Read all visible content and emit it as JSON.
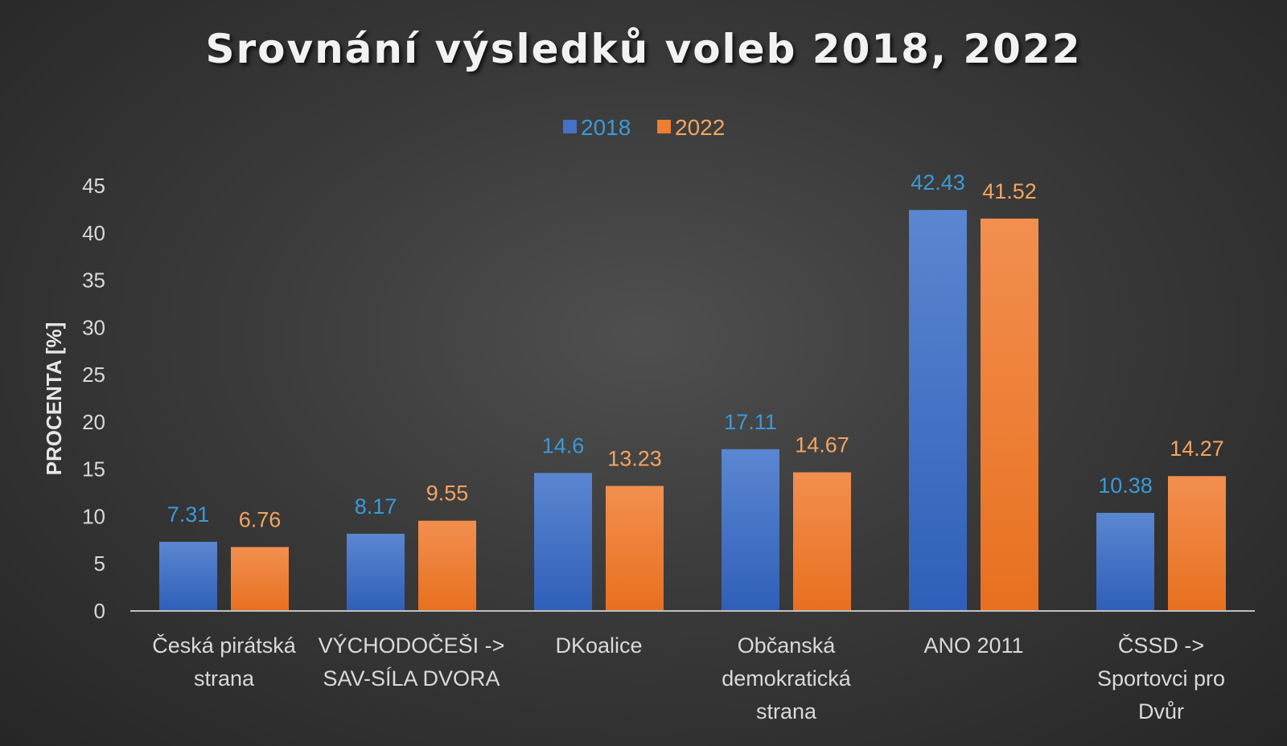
{
  "chart_data": {
    "type": "bar",
    "title": "Srovnání výsledků voleb 2018, 2022",
    "xlabel": "",
    "ylabel": "PROCENTA [%]",
    "ylim": [
      0,
      45
    ],
    "yticks": [
      0,
      5,
      10,
      15,
      20,
      25,
      30,
      35,
      40,
      45
    ],
    "grid": false,
    "legend_position": "top",
    "categories": [
      [
        "Česká pirátská",
        "strana"
      ],
      [
        "VÝCHODOČEŠI ->",
        "SAV-SÍLA DVORA"
      ],
      [
        "DKoalice"
      ],
      [
        "Občanská",
        "demokratická",
        "strana"
      ],
      [
        "ANO 2011"
      ],
      [
        "ČSSD ->",
        "Sportovci pro",
        "Dvůr"
      ]
    ],
    "series": [
      {
        "name": "2018",
        "color": "#4472c4",
        "label_color": "#3a9ad9",
        "values": [
          7.31,
          8.17,
          14.6,
          17.11,
          42.43,
          10.38
        ]
      },
      {
        "name": "2022",
        "color": "#ed7d31",
        "label_color": "#f4a460",
        "values": [
          6.76,
          9.55,
          13.23,
          14.67,
          41.52,
          14.27
        ]
      }
    ]
  }
}
